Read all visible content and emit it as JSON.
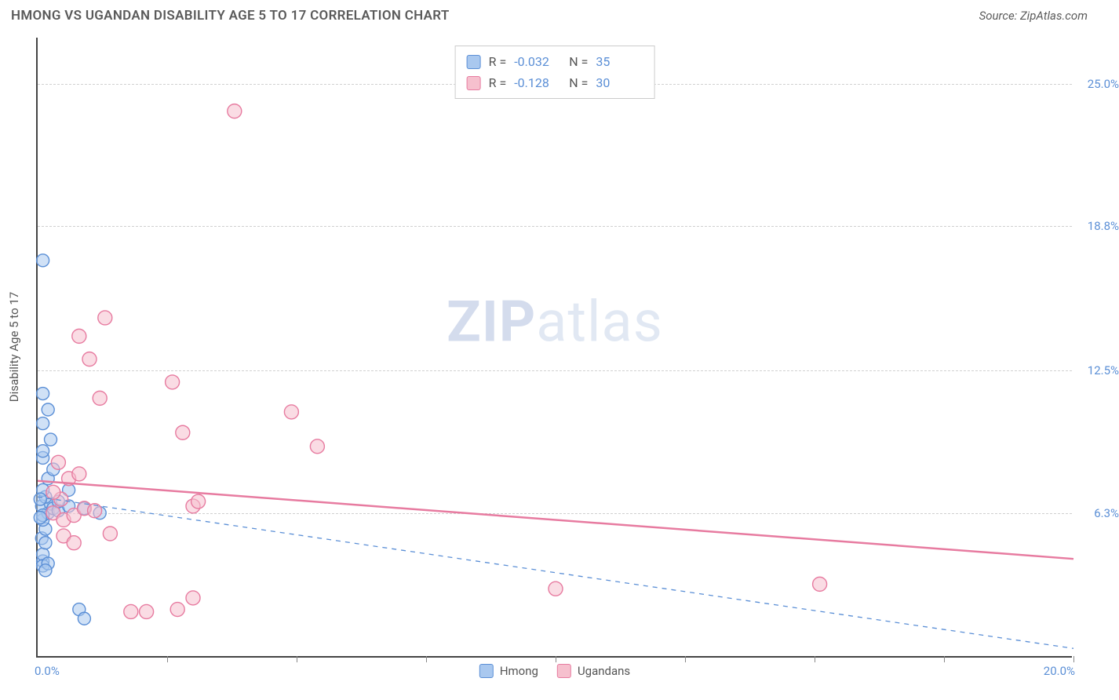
{
  "header": {
    "title": "HMONG VS UGANDAN DISABILITY AGE 5 TO 17 CORRELATION CHART",
    "source": "Source: ZipAtlas.com"
  },
  "chart": {
    "type": "scatter",
    "ylabel": "Disability Age 5 to 17",
    "watermark_bold": "ZIP",
    "watermark_rest": "atlas",
    "xlim": [
      0.0,
      20.0
    ],
    "ylim": [
      0.0,
      27.0
    ],
    "yticks": [
      {
        "value": 6.3,
        "label": "6.3%"
      },
      {
        "value": 12.5,
        "label": "12.5%"
      },
      {
        "value": 18.8,
        "label": "18.8%"
      },
      {
        "value": 25.0,
        "label": "25.0%"
      }
    ],
    "xtick_values": [
      2.5,
      5.0,
      7.5,
      10.0,
      12.5,
      15.0,
      17.5,
      20.0
    ],
    "x_start_label": "0.0%",
    "x_end_label": "20.0%",
    "background_color": "#ffffff",
    "grid_color": "#d0d0d0",
    "axis_color": "#444444",
    "label_color": "#5b8fd6",
    "series": [
      {
        "name": "Hmong",
        "color_fill": "#a9c8ef",
        "color_stroke": "#5b8fd6",
        "marker_radius": 8,
        "R": "-0.032",
        "N": "35",
        "trend": {
          "y_at_x0": 7.0,
          "y_at_xmax": 0.4,
          "dash": "6,6",
          "width": 1.3
        },
        "points": [
          [
            0.1,
            4.2
          ],
          [
            0.1,
            4.5
          ],
          [
            0.08,
            5.2
          ],
          [
            0.15,
            5.6
          ],
          [
            0.1,
            6.0
          ],
          [
            0.2,
            6.3
          ],
          [
            0.08,
            6.6
          ],
          [
            0.25,
            6.7
          ],
          [
            0.3,
            6.5
          ],
          [
            0.4,
            6.4
          ],
          [
            0.15,
            7.0
          ],
          [
            0.1,
            7.3
          ],
          [
            0.2,
            7.8
          ],
          [
            0.3,
            8.2
          ],
          [
            0.1,
            8.7
          ],
          [
            0.25,
            9.5
          ],
          [
            0.1,
            10.2
          ],
          [
            0.2,
            10.8
          ],
          [
            0.1,
            11.5
          ],
          [
            0.6,
            6.6
          ],
          [
            0.9,
            6.5
          ],
          [
            1.2,
            6.3
          ],
          [
            0.1,
            4.0
          ],
          [
            0.2,
            4.1
          ],
          [
            0.1,
            17.3
          ],
          [
            0.8,
            2.1
          ],
          [
            0.9,
            1.7
          ],
          [
            0.15,
            3.8
          ],
          [
            0.1,
            6.2
          ],
          [
            0.4,
            6.8
          ],
          [
            0.05,
            6.1
          ],
          [
            0.05,
            6.9
          ],
          [
            0.15,
            5.0
          ],
          [
            0.1,
            9.0
          ],
          [
            0.6,
            7.3
          ]
        ]
      },
      {
        "name": "Ugandans",
        "color_fill": "#f6c0ce",
        "color_stroke": "#e77ba0",
        "marker_radius": 9,
        "R": "-0.128",
        "N": "30",
        "trend": {
          "y_at_x0": 7.7,
          "y_at_xmax": 4.3,
          "dash": "none",
          "width": 2.5
        },
        "points": [
          [
            0.3,
            6.3
          ],
          [
            0.5,
            6.0
          ],
          [
            0.7,
            6.2
          ],
          [
            0.9,
            6.5
          ],
          [
            1.1,
            6.4
          ],
          [
            0.5,
            5.3
          ],
          [
            0.7,
            5.0
          ],
          [
            1.4,
            5.4
          ],
          [
            0.6,
            7.8
          ],
          [
            0.8,
            8.0
          ],
          [
            0.4,
            8.5
          ],
          [
            1.2,
            11.3
          ],
          [
            0.8,
            14.0
          ],
          [
            1.3,
            14.8
          ],
          [
            1.0,
            13.0
          ],
          [
            2.6,
            12.0
          ],
          [
            2.8,
            9.8
          ],
          [
            3.0,
            6.6
          ],
          [
            3.1,
            6.8
          ],
          [
            3.8,
            23.8
          ],
          [
            4.9,
            10.7
          ],
          [
            5.4,
            9.2
          ],
          [
            1.8,
            2.0
          ],
          [
            2.7,
            2.1
          ],
          [
            2.1,
            2.0
          ],
          [
            3.0,
            2.6
          ],
          [
            10.0,
            3.0
          ],
          [
            15.1,
            3.2
          ],
          [
            0.45,
            6.9
          ],
          [
            0.3,
            7.2
          ]
        ]
      }
    ],
    "legend_labels": {
      "s1": "Hmong",
      "s2": "Ugandans"
    },
    "stats_labels": {
      "R": "R =",
      "N": "N ="
    }
  }
}
